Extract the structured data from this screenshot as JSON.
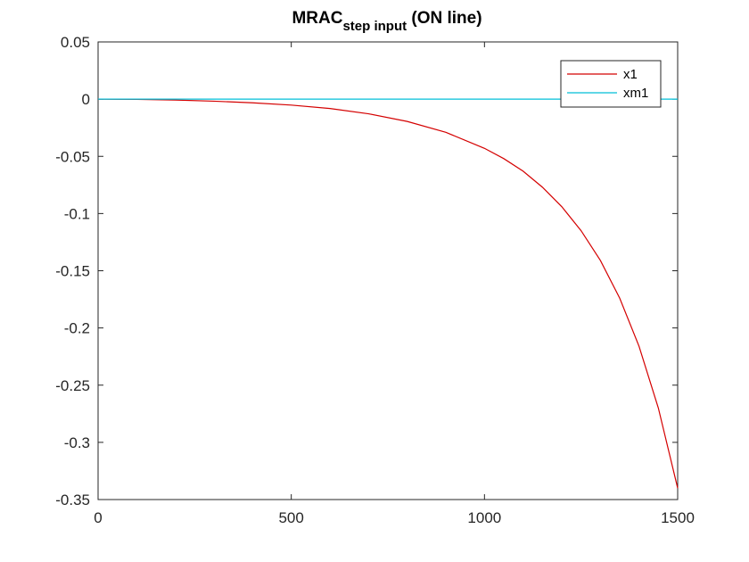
{
  "chart_data": {
    "type": "line",
    "title": {
      "main": "MRAC",
      "subscript": "step input",
      "suffix": " (ON line)"
    },
    "xlabel": "",
    "ylabel": "",
    "xlim": [
      0,
      1500
    ],
    "ylim": [
      -0.35,
      0.05
    ],
    "xticks": [
      0,
      500,
      1000,
      1500
    ],
    "xtick_labels": [
      "0",
      "500",
      "1000",
      "1500"
    ],
    "yticks": [
      0.05,
      0,
      -0.05,
      -0.1,
      -0.15,
      -0.2,
      -0.25,
      -0.3,
      -0.35
    ],
    "ytick_labels": [
      "0.05",
      "0",
      "-0.05",
      "-0.1",
      "-0.15",
      "-0.2",
      "-0.25",
      "-0.3",
      "-0.35"
    ],
    "grid": false,
    "legend": "top-right",
    "series": [
      {
        "name": "x1",
        "color": "#d40000",
        "x": [
          0,
          100,
          200,
          300,
          400,
          500,
          600,
          700,
          800,
          900,
          1000,
          1050,
          1100,
          1150,
          1200,
          1250,
          1300,
          1350,
          1400,
          1450,
          1500
        ],
        "y": [
          0,
          -0.0002,
          -0.0008,
          -0.0018,
          -0.0032,
          -0.0052,
          -0.0082,
          -0.0128,
          -0.0195,
          -0.029,
          -0.043,
          -0.052,
          -0.063,
          -0.077,
          -0.094,
          -0.115,
          -0.141,
          -0.174,
          -0.216,
          -0.27,
          -0.34
        ]
      },
      {
        "name": "xm1",
        "color": "#00bfd8",
        "x": [
          0,
          1500
        ],
        "y": [
          0,
          0
        ]
      }
    ]
  }
}
